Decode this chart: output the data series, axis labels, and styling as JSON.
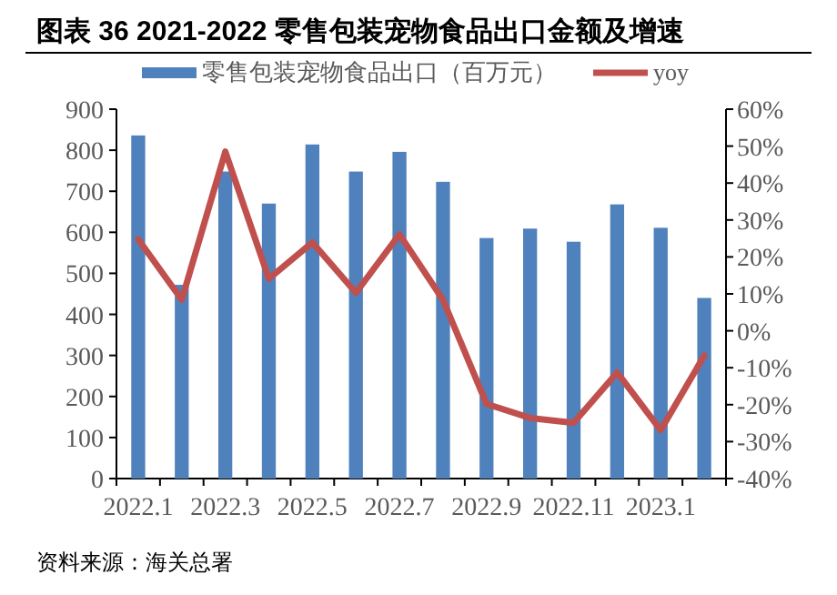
{
  "chart_data": {
    "type": "bar",
    "title": "图表 36 2021-2022 零售包装宠物食品出口金额及增速",
    "categories": [
      "2022.1",
      null,
      "2022.3",
      null,
      "2022.5",
      null,
      "2022.7",
      null,
      "2022.9",
      null,
      "2022.11",
      null,
      "2023.1",
      null
    ],
    "series": [
      {
        "name": "零售包装宠物食品出口（百万元）",
        "color": "#4f81bd",
        "values": [
          836,
          472,
          748,
          670,
          814,
          748,
          796,
          723,
          586,
          609,
          577,
          668,
          611,
          440
        ]
      },
      {
        "name": "yoy",
        "type": "line",
        "axis": "y2",
        "color": "#c0504d",
        "values": [
          24.8,
          8.4,
          48.5,
          14.1,
          23.9,
          10.3,
          26.1,
          8.4,
          -19.8,
          -23.6,
          -24.9,
          -11.3,
          -26.9,
          -6.7
        ]
      }
    ],
    "ylim": [
      0,
      900
    ],
    "yticks": [
      0,
      100,
      200,
      300,
      400,
      500,
      600,
      700,
      800,
      900
    ],
    "y2lim": [
      -40,
      60
    ],
    "y2ticks": [
      {
        "value": -40,
        "label": "-40%"
      },
      {
        "value": -30,
        "label": "-30%"
      },
      {
        "value": -20,
        "label": "-20%"
      },
      {
        "value": -10,
        "label": "-10%"
      },
      {
        "value": 0,
        "label": "0%"
      },
      {
        "value": 10,
        "label": "10%"
      },
      {
        "value": 20,
        "label": "20%"
      },
      {
        "value": 30,
        "label": "30%"
      },
      {
        "value": 40,
        "label": "40%"
      },
      {
        "value": 50,
        "label": "50%"
      },
      {
        "value": 60,
        "label": "60%"
      }
    ],
    "legend": "top",
    "annotations": [
      "资料来源：海关总署"
    ]
  }
}
